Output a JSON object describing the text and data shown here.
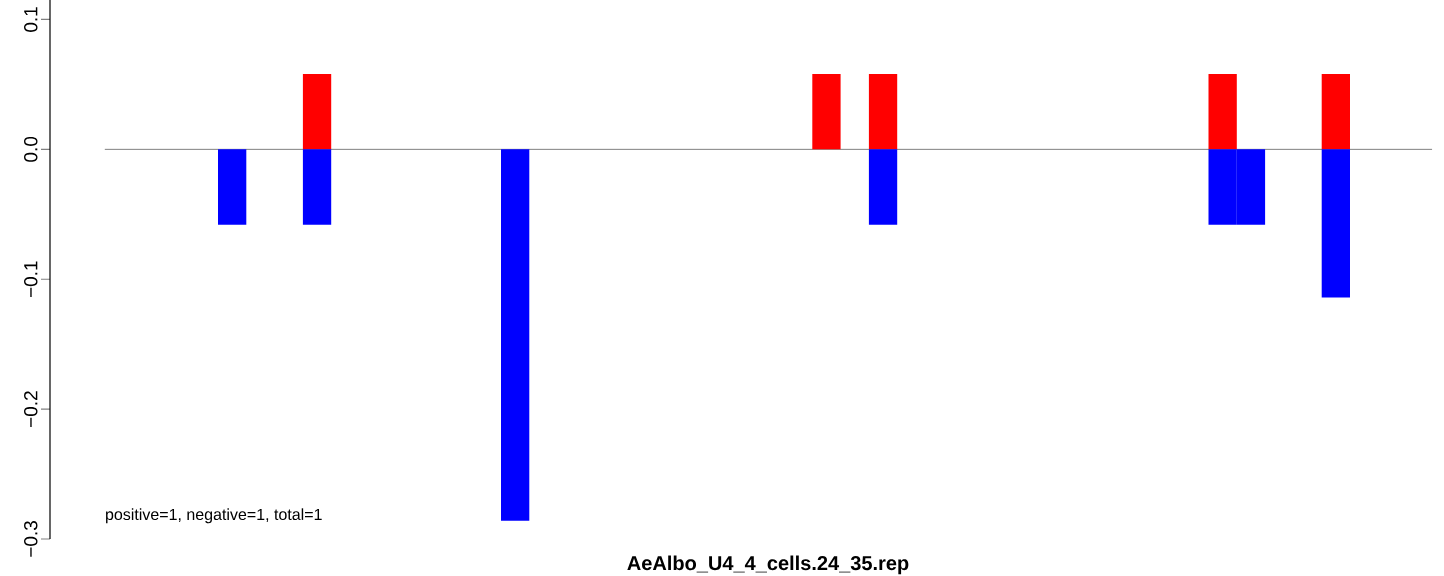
{
  "chart_data": {
    "type": "bar",
    "xlabel": "AeAlbo_U4_4_cells.24_35.rep",
    "categories": [
      null,
      null,
      null,
      null,
      null,
      null,
      null,
      null,
      null,
      null,
      null,
      null,
      null,
      null,
      null,
      null,
      null,
      null,
      null,
      null,
      null,
      null,
      null,
      null,
      null,
      null,
      null,
      null,
      null,
      null,
      null,
      null,
      null,
      null,
      null,
      null,
      null,
      null,
      null,
      null,
      null,
      null,
      null,
      null,
      null,
      null,
      null
    ],
    "series": [
      {
        "color": "#ff0000",
        "values": [
          null,
          null,
          null,
          null,
          null,
          null,
          null,
          0.058,
          null,
          null,
          null,
          null,
          null,
          null,
          null,
          null,
          null,
          null,
          null,
          null,
          null,
          null,
          null,
          null,
          null,
          0.058,
          null,
          0.058,
          null,
          null,
          null,
          null,
          null,
          null,
          null,
          null,
          null,
          null,
          null,
          0.058,
          null,
          null,
          null,
          0.058,
          null,
          null,
          null
        ]
      },
      {
        "color": "#0000ff",
        "values": [
          null,
          null,
          null,
          null,
          -0.058,
          null,
          null,
          -0.058,
          null,
          null,
          null,
          null,
          null,
          null,
          -0.286,
          null,
          null,
          null,
          null,
          null,
          null,
          null,
          null,
          null,
          null,
          null,
          null,
          -0.058,
          null,
          null,
          null,
          null,
          null,
          null,
          null,
          null,
          null,
          null,
          null,
          -0.058,
          -0.058,
          null,
          null,
          -0.114,
          null,
          null,
          null
        ]
      }
    ],
    "ylim": [
      -0.3,
      0.115
    ],
    "yticks": [
      {
        "value": -0.3,
        "label": "−0.3"
      },
      {
        "value": -0.2,
        "label": "−0.2"
      },
      {
        "value": -0.1,
        "label": "−0.1"
      },
      {
        "value": 0,
        "label": "0.0"
      },
      {
        "value": 0.1,
        "label": "0.1"
      }
    ],
    "ref_lines": [
      {
        "axis": "y",
        "value": 0,
        "color": "#808080"
      }
    ],
    "annotations": [
      "positive=1, negative=1, total=1"
    ]
  }
}
